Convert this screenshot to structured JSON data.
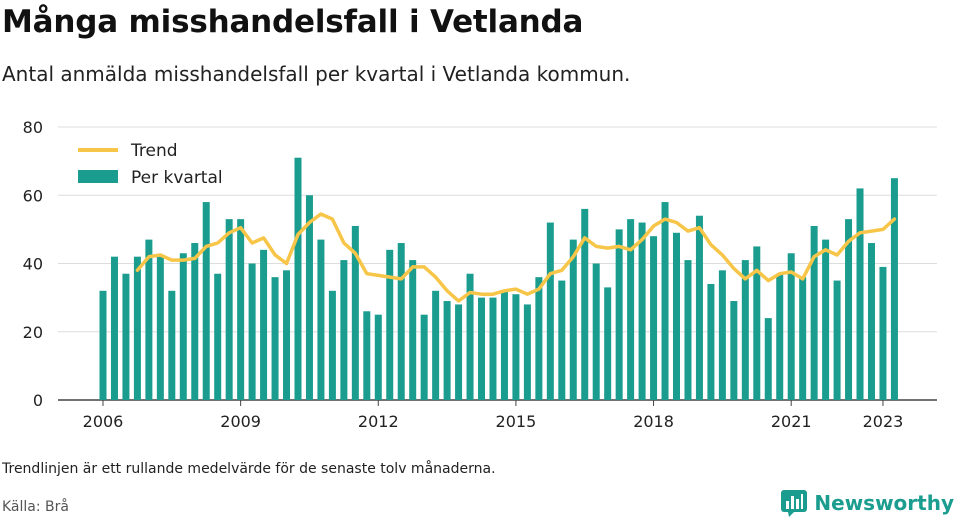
{
  "header": {
    "title": "Många misshandelsfall i Vetlanda",
    "subtitle": "Antal anmälda misshandelsfall per kvartal i Vetlanda kommun."
  },
  "footer": {
    "note": "Trendlinjen är ett rullande medelvärde för de senaste tolv månaderna.",
    "source": "Källa: Brå",
    "brand": "Newsworthy"
  },
  "colors": {
    "bar": "#1a9d8f",
    "trend": "#f7c548",
    "grid": "#dddddd",
    "axis": "#444444",
    "brand": "#1a9d8f"
  },
  "chart_data": {
    "type": "bar",
    "title": "Många misshandelsfall i Vetlanda",
    "subtitle": "Antal anmälda misshandelsfall per kvartal i Vetlanda kommun.",
    "x_start_year": 2006,
    "x_ticks": [
      "2006",
      "2009",
      "2012",
      "2015",
      "2018",
      "2021",
      "2023"
    ],
    "ylim": [
      0,
      80
    ],
    "y_ticks": [
      0,
      20,
      40,
      60,
      80
    ],
    "grid": true,
    "legend_position": "top-left",
    "series": [
      {
        "name": "Per kvartal",
        "kind": "bar",
        "values": [
          32,
          42,
          37,
          42,
          47,
          42,
          32,
          43,
          46,
          58,
          37,
          53,
          53,
          40,
          44,
          36,
          38,
          71,
          60,
          47,
          32,
          41,
          51,
          26,
          25,
          44,
          46,
          41,
          25,
          32,
          29,
          28,
          37,
          30,
          30,
          32,
          31,
          28,
          36,
          52,
          35,
          47,
          56,
          40,
          33,
          50,
          53,
          52,
          48,
          58,
          49,
          41,
          54,
          34,
          38,
          29,
          41,
          45,
          24,
          37,
          43,
          36,
          51,
          47,
          35,
          53,
          62,
          46,
          39,
          65
        ]
      },
      {
        "name": "Trend",
        "kind": "line",
        "values": [
          null,
          null,
          null,
          38,
          42,
          42.5,
          41,
          41,
          41.5,
          45,
          46,
          49,
          50.5,
          46,
          47.5,
          42.5,
          40,
          48.5,
          52,
          54.5,
          53,
          46,
          43,
          37,
          36.5,
          36,
          35.5,
          39,
          39,
          36,
          32,
          29,
          31.5,
          31,
          31,
          32,
          32.5,
          31,
          32.5,
          37,
          38,
          42,
          47.5,
          45,
          44.5,
          45,
          44,
          47,
          51,
          53,
          52,
          49.5,
          50.5,
          45.5,
          42.5,
          38.5,
          35.5,
          38,
          35,
          37,
          37.5,
          35.5,
          42,
          44,
          42.5,
          46.5,
          49,
          49.5,
          50,
          53
        ]
      }
    ]
  }
}
